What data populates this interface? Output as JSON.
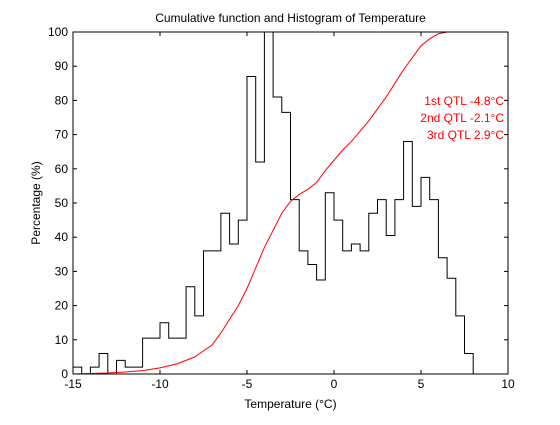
{
  "chart_data": {
    "type": "step",
    "title": "Cumulative function and Histogram of Temperature",
    "xlabel": "Temperature (°C)",
    "ylabel": "Percentage (%)",
    "xlim": [
      -15,
      10
    ],
    "ylim": [
      0,
      100
    ],
    "xticks": [
      -15,
      -10,
      -5,
      0,
      5,
      10
    ],
    "yticks": [
      0,
      10,
      20,
      30,
      40,
      50,
      60,
      70,
      80,
      90,
      100
    ],
    "grid": false,
    "series": [
      {
        "kind": "histogram-stairs",
        "color": "#000000",
        "edges": [
          -15,
          -14.5,
          -14,
          -13.5,
          -13,
          -12.5,
          -12,
          -11.5,
          -11,
          -10.5,
          -10,
          -9.5,
          -9,
          -8.5,
          -8,
          -7.5,
          -7,
          -6.5,
          -6,
          -5.5,
          -5,
          -4.5,
          -4,
          -3.5,
          -3,
          -2.5,
          -2,
          -1.5,
          -1,
          -0.5,
          0,
          0.5,
          1,
          1.5,
          2,
          2.5,
          3,
          3.5,
          4,
          4.5,
          5,
          5.5,
          6,
          6.5,
          7,
          7.5,
          8
        ],
        "values": [
          2,
          0,
          2,
          6,
          0,
          4,
          2,
          2,
          10.5,
          10.5,
          15,
          10.5,
          10.5,
          25.5,
          17,
          36,
          36,
          47,
          38,
          45,
          87,
          62,
          100,
          81,
          76.5,
          51,
          36,
          32,
          27.5,
          53,
          45,
          36,
          38,
          36,
          47,
          51,
          40.5,
          51,
          68,
          49,
          57.5,
          51,
          34,
          28,
          17,
          6
        ]
      },
      {
        "kind": "cumulative",
        "color": "#ff0000",
        "x": [
          -15,
          -13,
          -12,
          -11,
          -10,
          -9,
          -8,
          -7,
          -6.5,
          -6,
          -5.5,
          -5,
          -4.5,
          -4,
          -3.5,
          -3,
          -2.5,
          -2,
          -1.5,
          -1,
          -0.5,
          0,
          0.5,
          1,
          1.5,
          2,
          2.5,
          3,
          3.5,
          4,
          4.5,
          5,
          5.5,
          6,
          6.5,
          7,
          8,
          10
        ],
        "y": [
          0,
          0.3,
          0.6,
          1,
          1.8,
          3,
          5,
          8.5,
          12,
          16,
          20,
          25,
          31,
          37,
          42,
          47,
          50.5,
          52.5,
          54,
          56,
          59.5,
          62.5,
          65.5,
          68,
          71,
          74,
          77.5,
          81,
          85,
          89,
          92.5,
          96,
          98,
          99.5,
          100,
          100,
          100,
          100
        ]
      }
    ],
    "annotations": [
      "1st QTL -4.8°C",
      "2nd QTL -2.1°C",
      "3rd QTL  2.9°C"
    ],
    "annotation_color": "#ff0000"
  }
}
